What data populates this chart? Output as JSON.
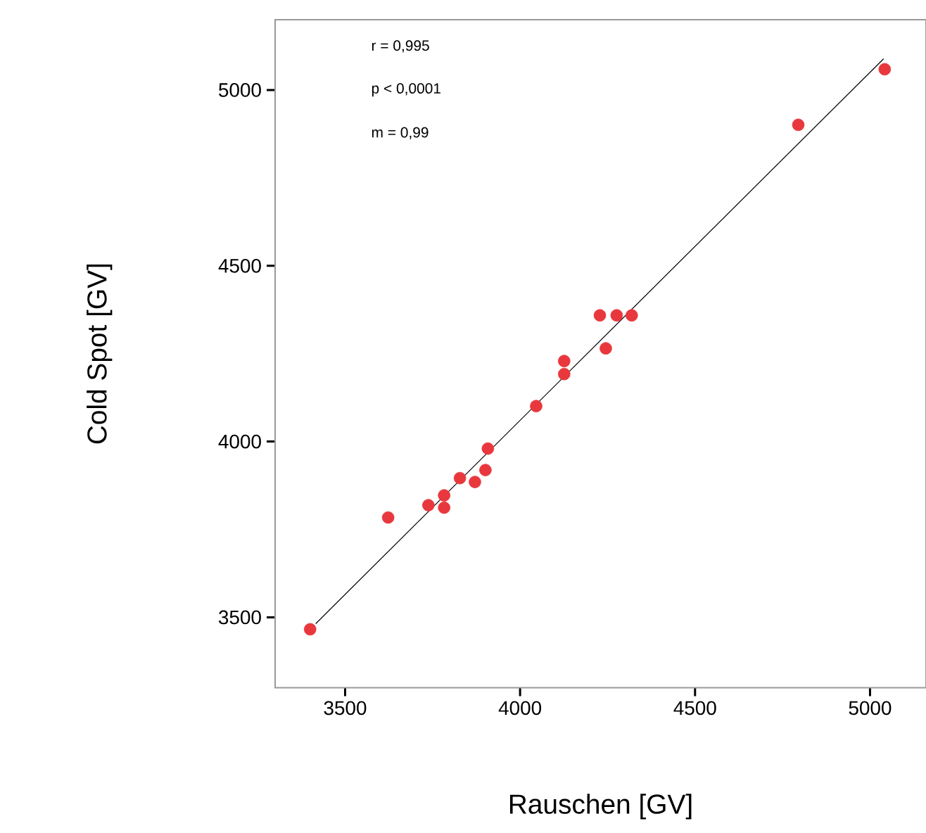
{
  "chart_data": {
    "type": "scatter",
    "xlabel": "Rauschen [GV]",
    "ylabel": "Cold Spot [GV]",
    "xlim": [
      3300,
      5160
    ],
    "ylim": [
      3300,
      5200
    ],
    "xticks": [
      3500,
      4000,
      4500,
      5000
    ],
    "yticks": [
      3500,
      4000,
      4500,
      5000
    ],
    "annotations": [
      "r = 0,995",
      "p < 0,0001",
      "m = 0,99"
    ],
    "series": [
      {
        "marker": "circle",
        "color": "#e8383d",
        "x": [
          3400,
          3623,
          3738,
          3783,
          3783,
          3828,
          3871,
          3901,
          3908,
          4046,
          4126,
          4126,
          4228,
          4245,
          4276,
          4319,
          4795,
          5042
        ],
        "values": [
          3466,
          3784,
          3819,
          3812,
          3847,
          3896,
          3885,
          3919,
          3980,
          4101,
          4192,
          4229,
          4359,
          4265,
          4359,
          4359,
          4901,
          5059
        ]
      },
      {
        "type": "line",
        "color": "#000000",
        "line_style": "solid",
        "marker": "none",
        "x": [
          3416,
          5039
        ],
        "values": [
          3482,
          5089
        ]
      }
    ]
  }
}
